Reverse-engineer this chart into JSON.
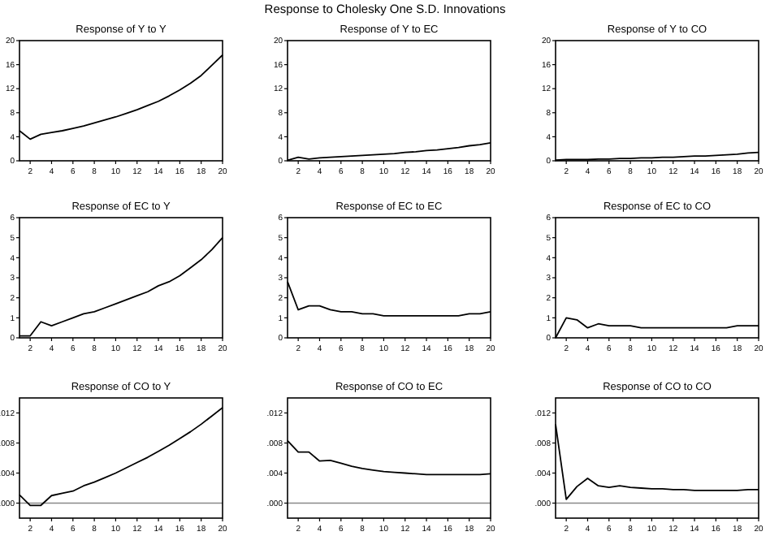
{
  "chart_data": [
    {
      "type": "line",
      "title": "Response of Y to Y",
      "annotations": [
        "Response to Cholesky One S.D. Innovations"
      ],
      "x": [
        1,
        2,
        3,
        4,
        5,
        6,
        7,
        8,
        9,
        10,
        11,
        12,
        13,
        14,
        15,
        16,
        17,
        18,
        19,
        20
      ],
      "xlim": [
        1,
        20
      ],
      "xticks": [
        2,
        4,
        6,
        8,
        10,
        12,
        14,
        16,
        18,
        20
      ],
      "ylim": [
        0,
        20
      ],
      "yticks": [
        0,
        4,
        8,
        12,
        16,
        20
      ],
      "grid": false,
      "series": [
        {
          "color": "#000000",
          "values": [
            5.0,
            3.6,
            4.4,
            4.7,
            5.0,
            5.4,
            5.8,
            6.3,
            6.8,
            7.3,
            7.9,
            8.5,
            9.2,
            9.9,
            10.8,
            11.8,
            12.9,
            14.2,
            15.9,
            17.6
          ]
        }
      ]
    },
    {
      "type": "line",
      "title": "Response of Y to EC",
      "x": [
        1,
        2,
        3,
        4,
        5,
        6,
        7,
        8,
        9,
        10,
        11,
        12,
        13,
        14,
        15,
        16,
        17,
        18,
        19,
        20
      ],
      "xlim": [
        1,
        20
      ],
      "xticks": [
        2,
        4,
        6,
        8,
        10,
        12,
        14,
        16,
        18,
        20
      ],
      "ylim": [
        0,
        20
      ],
      "yticks": [
        0,
        4,
        8,
        12,
        16,
        20
      ],
      "grid": false,
      "series": [
        {
          "color": "#000000",
          "values": [
            0.1,
            0.6,
            0.3,
            0.5,
            0.6,
            0.7,
            0.8,
            0.9,
            1.0,
            1.1,
            1.2,
            1.4,
            1.5,
            1.7,
            1.8,
            2.0,
            2.2,
            2.5,
            2.7,
            3.0
          ]
        }
      ]
    },
    {
      "type": "line",
      "title": "Response of Y to CO",
      "x": [
        1,
        2,
        3,
        4,
        5,
        6,
        7,
        8,
        9,
        10,
        11,
        12,
        13,
        14,
        15,
        16,
        17,
        18,
        19,
        20
      ],
      "xlim": [
        1,
        20
      ],
      "xticks": [
        2,
        4,
        6,
        8,
        10,
        12,
        14,
        16,
        18,
        20
      ],
      "ylim": [
        0,
        20
      ],
      "yticks": [
        0,
        4,
        8,
        12,
        16,
        20
      ],
      "grid": false,
      "series": [
        {
          "color": "#000000",
          "values": [
            0.1,
            0.2,
            0.2,
            0.2,
            0.3,
            0.3,
            0.4,
            0.4,
            0.5,
            0.5,
            0.6,
            0.6,
            0.7,
            0.8,
            0.8,
            0.9,
            1.0,
            1.1,
            1.3,
            1.4
          ]
        }
      ]
    },
    {
      "type": "line",
      "title": "Response of EC to Y",
      "x": [
        1,
        2,
        3,
        4,
        5,
        6,
        7,
        8,
        9,
        10,
        11,
        12,
        13,
        14,
        15,
        16,
        17,
        18,
        19,
        20
      ],
      "xlim": [
        1,
        20
      ],
      "xticks": [
        2,
        4,
        6,
        8,
        10,
        12,
        14,
        16,
        18,
        20
      ],
      "ylim": [
        0,
        6
      ],
      "yticks": [
        0,
        1,
        2,
        3,
        4,
        5,
        6
      ],
      "grid": false,
      "series": [
        {
          "color": "#000000",
          "values": [
            0.1,
            0.1,
            0.8,
            0.6,
            0.8,
            1.0,
            1.2,
            1.3,
            1.5,
            1.7,
            1.9,
            2.1,
            2.3,
            2.6,
            2.8,
            3.1,
            3.5,
            3.9,
            4.4,
            5.0
          ]
        }
      ]
    },
    {
      "type": "line",
      "title": "Response of EC to EC",
      "x": [
        1,
        2,
        3,
        4,
        5,
        6,
        7,
        8,
        9,
        10,
        11,
        12,
        13,
        14,
        15,
        16,
        17,
        18,
        19,
        20
      ],
      "xlim": [
        1,
        20
      ],
      "xticks": [
        2,
        4,
        6,
        8,
        10,
        12,
        14,
        16,
        18,
        20
      ],
      "ylim": [
        0,
        6
      ],
      "yticks": [
        0,
        1,
        2,
        3,
        4,
        5,
        6
      ],
      "grid": false,
      "series": [
        {
          "color": "#000000",
          "values": [
            2.8,
            1.4,
            1.6,
            1.6,
            1.4,
            1.3,
            1.3,
            1.2,
            1.2,
            1.1,
            1.1,
            1.1,
            1.1,
            1.1,
            1.1,
            1.1,
            1.1,
            1.2,
            1.2,
            1.3
          ]
        }
      ]
    },
    {
      "type": "line",
      "title": "Response of EC to CO",
      "x": [
        1,
        2,
        3,
        4,
        5,
        6,
        7,
        8,
        9,
        10,
        11,
        12,
        13,
        14,
        15,
        16,
        17,
        18,
        19,
        20
      ],
      "xlim": [
        1,
        20
      ],
      "xticks": [
        2,
        4,
        6,
        8,
        10,
        12,
        14,
        16,
        18,
        20
      ],
      "ylim": [
        0,
        6
      ],
      "yticks": [
        0,
        1,
        2,
        3,
        4,
        5,
        6
      ],
      "grid": false,
      "series": [
        {
          "color": "#000000",
          "values": [
            0,
            1.0,
            0.9,
            0.5,
            0.7,
            0.6,
            0.6,
            0.6,
            0.5,
            0.5,
            0.5,
            0.5,
            0.5,
            0.5,
            0.5,
            0.5,
            0.5,
            0.6,
            0.6,
            0.6
          ]
        }
      ]
    },
    {
      "type": "line",
      "title": "Response of CO to Y",
      "x": [
        1,
        2,
        3,
        4,
        5,
        6,
        7,
        8,
        9,
        10,
        11,
        12,
        13,
        14,
        15,
        16,
        17,
        18,
        19,
        20
      ],
      "xlim": [
        1,
        20
      ],
      "xticks": [
        2,
        4,
        6,
        8,
        10,
        12,
        14,
        16,
        18,
        20
      ],
      "ylim": [
        -0.002,
        0.014
      ],
      "yticks": [
        {
          "value": 0,
          "label": ".000"
        },
        {
          "value": 0.004,
          "label": ".004"
        },
        {
          "value": 0.008,
          "label": ".008"
        },
        {
          "value": 0.012,
          "label": ".012"
        }
      ],
      "grid": false,
      "ref_lines": [
        {
          "axis": "y",
          "value": 0,
          "color": "#888888"
        }
      ],
      "series": [
        {
          "color": "#000000",
          "values": [
            0.0011,
            -0.0003,
            -0.0003,
            0.001,
            0.0013,
            0.0016,
            0.0023,
            0.0028,
            0.0034,
            0.004,
            0.0047,
            0.0054,
            0.0061,
            0.0069,
            0.0077,
            0.0086,
            0.0095,
            0.0105,
            0.0116,
            0.0127
          ]
        }
      ]
    },
    {
      "type": "line",
      "title": "Response of CO to EC",
      "x": [
        1,
        2,
        3,
        4,
        5,
        6,
        7,
        8,
        9,
        10,
        11,
        12,
        13,
        14,
        15,
        16,
        17,
        18,
        19,
        20
      ],
      "xlim": [
        1,
        20
      ],
      "xticks": [
        2,
        4,
        6,
        8,
        10,
        12,
        14,
        16,
        18,
        20
      ],
      "ylim": [
        -0.002,
        0.014
      ],
      "yticks": [
        {
          "value": 0,
          "label": ".000"
        },
        {
          "value": 0.004,
          "label": ".004"
        },
        {
          "value": 0.008,
          "label": ".008"
        },
        {
          "value": 0.012,
          "label": ".012"
        }
      ],
      "grid": false,
      "ref_lines": [
        {
          "axis": "y",
          "value": 0,
          "color": "#888888"
        }
      ],
      "series": [
        {
          "color": "#000000",
          "values": [
            0.0083,
            0.0068,
            0.0068,
            0.0056,
            0.0057,
            0.0053,
            0.0049,
            0.0046,
            0.0044,
            0.0042,
            0.0041,
            0.004,
            0.0039,
            0.0038,
            0.0038,
            0.0038,
            0.0038,
            0.0038,
            0.0038,
            0.0039
          ]
        }
      ]
    },
    {
      "type": "line",
      "title": "Response of CO to CO",
      "x": [
        1,
        2,
        3,
        4,
        5,
        6,
        7,
        8,
        9,
        10,
        11,
        12,
        13,
        14,
        15,
        16,
        17,
        18,
        19,
        20
      ],
      "xlim": [
        1,
        20
      ],
      "xticks": [
        2,
        4,
        6,
        8,
        10,
        12,
        14,
        16,
        18,
        20
      ],
      "ylim": [
        -0.002,
        0.014
      ],
      "yticks": [
        {
          "value": 0,
          "label": ".000"
        },
        {
          "value": 0.004,
          "label": ".004"
        },
        {
          "value": 0.008,
          "label": ".008"
        },
        {
          "value": 0.012,
          "label": ".012"
        }
      ],
      "grid": false,
      "ref_lines": [
        {
          "axis": "y",
          "value": 0,
          "color": "#888888"
        }
      ],
      "series": [
        {
          "color": "#000000",
          "values": [
            0.0105,
            0.0005,
            0.0022,
            0.0033,
            0.0023,
            0.0021,
            0.0023,
            0.0021,
            0.002,
            0.0019,
            0.0019,
            0.0018,
            0.0018,
            0.0017,
            0.0017,
            0.0017,
            0.0017,
            0.0017,
            0.0018,
            0.0018
          ]
        }
      ]
    }
  ]
}
